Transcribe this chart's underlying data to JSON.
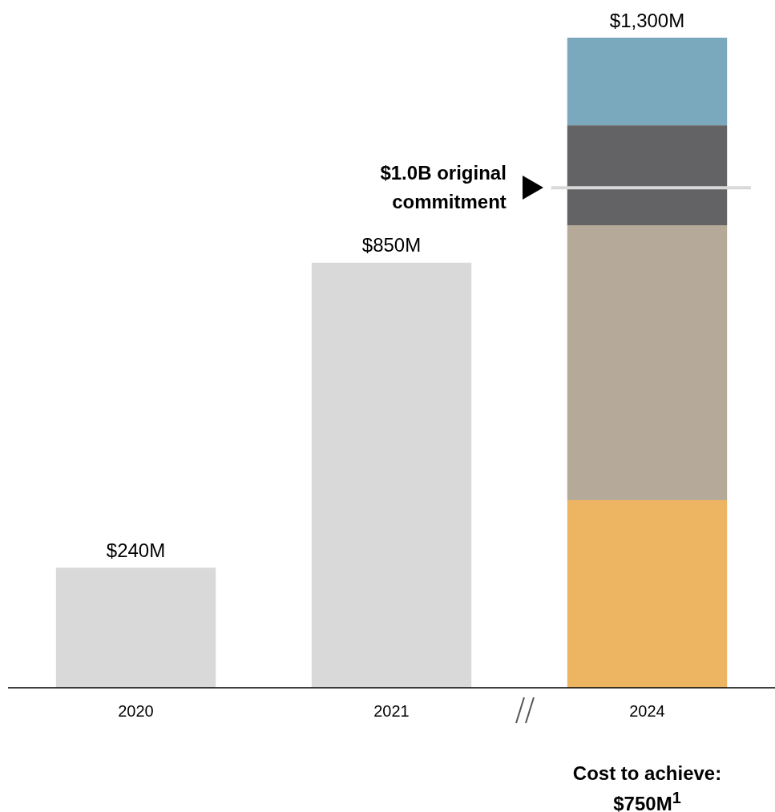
{
  "chart_data": {
    "type": "bar",
    "stacked": true,
    "categories": [
      "2020",
      "2021",
      "2024"
    ],
    "series": [
      {
        "color": "#d9d9d9",
        "values": [
          240,
          850,
          null
        ],
        "value_labels": [
          "$240M",
          "$850M",
          null
        ]
      },
      {
        "color": "#edb562",
        "values": [
          null,
          null,
          375
        ]
      },
      {
        "color": "#b5a999",
        "values": [
          null,
          null,
          550
        ]
      },
      {
        "color": "#636365",
        "values": [
          null,
          null,
          200
        ]
      },
      {
        "color": "#7aa8bd",
        "values": [
          null,
          null,
          175
        ]
      }
    ],
    "ylim": [
      0,
      1300
    ],
    "totals": [
      null,
      null,
      "$1,300M"
    ],
    "ref_lines": [
      {
        "axis": "y",
        "value": 1000,
        "label": "$1.0B original commitment",
        "color": "#d9d9d9"
      }
    ],
    "annotations": [
      "Cost to achieve: $750M$^{1}$"
    ],
    "legend": false,
    "grid": false
  }
}
